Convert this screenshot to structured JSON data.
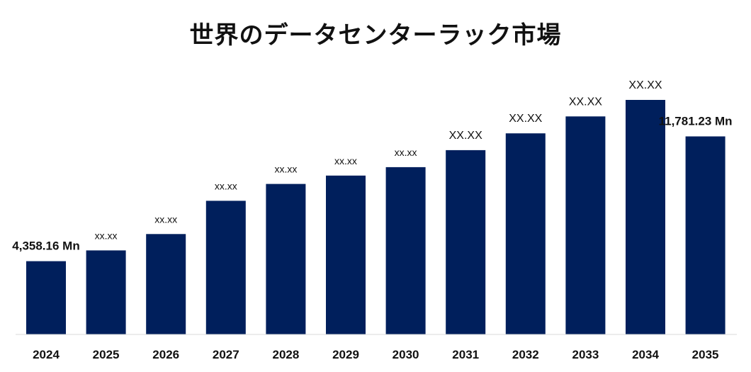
{
  "chart_data": {
    "type": "bar",
    "title": "世界のデータセンターラック市場",
    "categories": [
      "2024",
      "2025",
      "2026",
      "2027",
      "2028",
      "2029",
      "2030",
      "2031",
      "2032",
      "2033",
      "2034",
      "2035"
    ],
    "values": [
      4358.16,
      5000,
      5970,
      7950,
      8950,
      9450,
      9950,
      10960,
      11961,
      12970,
      13950,
      11781.23
    ],
    "data_labels": [
      "4,358.16 Mn",
      "xx.xx",
      "xx.xx",
      "xx.xx",
      "xx.xx",
      "xx.xx",
      "xx.xx",
      "XX.XX",
      "XX.XX",
      "XX.XX",
      "XX.XX",
      "11,781.23 Mn"
    ],
    "bar_color": "#001f5c",
    "grid": false,
    "legend": "none"
  }
}
